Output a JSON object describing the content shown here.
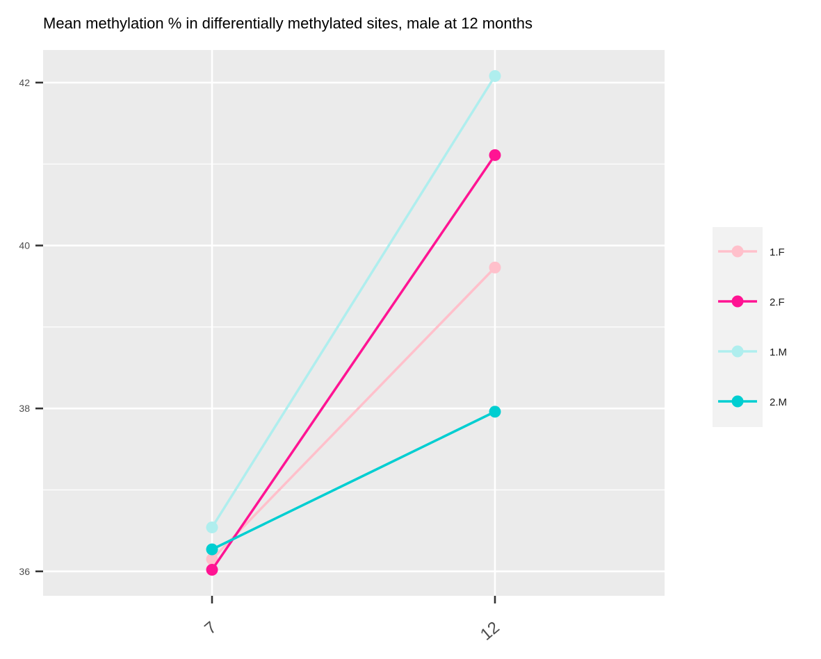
{
  "chart_data": {
    "type": "line",
    "title": "Mean methylation % in differentially methylated sites, male at 12 months",
    "xlabel": "",
    "ylabel": "",
    "x": [
      "7",
      "12"
    ],
    "x_ticks": [
      "7",
      "12"
    ],
    "y_ticks": [
      36,
      38,
      40,
      42
    ],
    "y_tick_labels": [
      "36",
      "38",
      "40",
      "42"
    ],
    "ylim": [
      35.7,
      42.4
    ],
    "grid": true,
    "legend_position": "right",
    "series": [
      {
        "name": "1.F",
        "values": [
          36.15,
          39.73
        ],
        "color": "#ffc0cb"
      },
      {
        "name": "2.F",
        "values": [
          36.02,
          41.11
        ],
        "color": "#ff1493"
      },
      {
        "name": "1.M",
        "values": [
          36.54,
          42.08
        ],
        "color": "#afeeee"
      },
      {
        "name": "2.M",
        "values": [
          36.27,
          37.96
        ],
        "color": "#00ced1"
      }
    ],
    "panel_background": "#ebebeb",
    "legend_background": "#f2f2f2"
  }
}
